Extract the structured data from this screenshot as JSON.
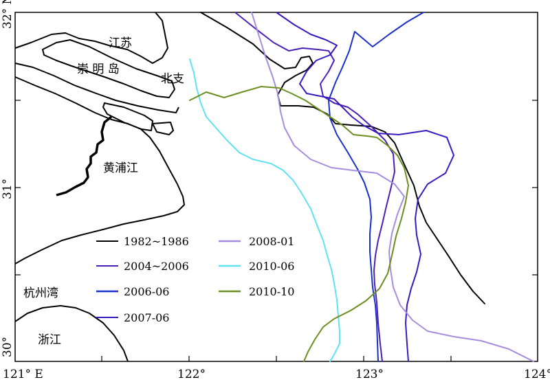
{
  "map": {
    "x_ticks": [
      "121° E",
      "122°",
      "123°",
      "124°"
    ],
    "y_ticks": [
      "32° N",
      "31°",
      "30°"
    ],
    "regions": {
      "jiangsu": "江苏",
      "chongming": "崇 明 岛",
      "beizhi": "北支",
      "huangpu": "黄浦江",
      "hangzhou_bay": "杭州湾",
      "zhejiang": "浙江"
    },
    "legend": [
      {
        "label": "1982~1986",
        "color": "#000000"
      },
      {
        "label": "2004~2006",
        "color": "#4a1fb8"
      },
      {
        "label": "2006-06",
        "color": "#1a2fc8"
      },
      {
        "label": "2007-06",
        "color": "#3a18c0"
      },
      {
        "label": "2008-01",
        "color": "#a78be0"
      },
      {
        "label": "2010-06",
        "color": "#5fe3f0"
      },
      {
        "label": "2010-10",
        "color": "#6b8e1f"
      }
    ]
  }
}
